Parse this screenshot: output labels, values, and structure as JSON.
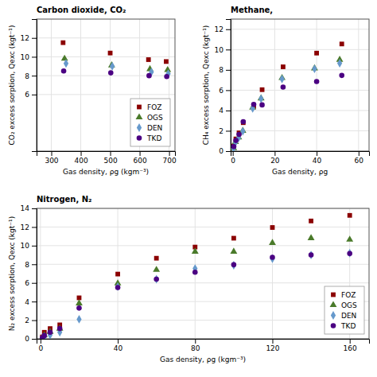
{
  "chart_data": [
    {
      "type": "scatter",
      "title": "Carbon dioxide, CO₂",
      "x_label": "Gas density, ρg (kgm⁻³)",
      "y_label": "CO₂ excess sorption, Qexc (kgt⁻¹)",
      "xlim": [
        250,
        720
      ],
      "ylim": [
        0,
        14
      ],
      "xticks": [
        300,
        400,
        500,
        600,
        700
      ],
      "yticks": [
        6,
        8,
        10,
        12
      ],
      "grid": true,
      "legend": "lower right",
      "series": [
        {
          "name": "FOZ",
          "color": "#8B0000",
          "marker": "square",
          "x": [
            340,
            500,
            630,
            690
          ],
          "values": [
            11.5,
            10.4,
            9.7,
            9.5
          ]
        },
        {
          "name": "OGS",
          "color": "#4A7A2A",
          "marker": "triangle",
          "x": [
            345,
            505,
            635,
            695
          ],
          "values": [
            9.8,
            9.1,
            8.7,
            8.6
          ]
        },
        {
          "name": "DEN",
          "color": "#6699CC",
          "marker": "diamond",
          "x": [
            350,
            507,
            640,
            697
          ],
          "values": [
            9.3,
            9.0,
            8.4,
            8.2
          ]
        },
        {
          "name": "TKD",
          "color": "#4B0082",
          "marker": "circle",
          "x": [
            342,
            502,
            632,
            692
          ],
          "values": [
            8.5,
            8.3,
            8.0,
            7.9
          ]
        }
      ]
    },
    {
      "type": "scatter",
      "title": "Methane,",
      "x_label": "Gas density, ρg",
      "y_label": "CH₄ excess sorption, Qexc (kgt⁻¹)",
      "xlim": [
        -1,
        65
      ],
      "ylim": [
        0,
        13
      ],
      "xticks": [
        0,
        20,
        40,
        60
      ],
      "yticks": [
        0,
        2,
        4,
        6,
        8,
        10,
        12
      ],
      "grid": true,
      "series": [
        {
          "name": "FOZ",
          "color": "#8B0000",
          "marker": "square",
          "x": [
            0.5,
            1.5,
            3,
            5,
            10,
            14,
            24,
            40,
            52
          ],
          "values": [
            0.5,
            1.2,
            1.8,
            2.8,
            4.4,
            6.05,
            8.3,
            9.65,
            10.55
          ]
        },
        {
          "name": "OGS",
          "color": "#4A7A2A",
          "marker": "triangle",
          "x": [
            0.4,
            1.3,
            2.8,
            4.8,
            9.5,
            13.5,
            23.5,
            39,
            51
          ],
          "values": [
            0.3,
            0.9,
            1.35,
            2.0,
            4.3,
            5.2,
            7.2,
            8.15,
            9.0
          ]
        },
        {
          "name": "DEN",
          "color": "#6699CC",
          "marker": "diamond",
          "x": [
            0.4,
            1.3,
            2.8,
            4.8,
            9.5,
            13.5,
            23.5,
            39,
            51
          ],
          "values": [
            0.28,
            0.85,
            1.3,
            1.95,
            4.2,
            5.15,
            7.1,
            8.1,
            8.65
          ]
        },
        {
          "name": "TKD",
          "color": "#4B0082",
          "marker": "circle",
          "x": [
            0.5,
            1.5,
            3,
            5,
            10,
            14,
            24,
            40,
            52
          ],
          "values": [
            0.45,
            1.05,
            1.65,
            2.9,
            4.6,
            4.55,
            6.3,
            6.85,
            7.45
          ]
        }
      ]
    },
    {
      "type": "scatter",
      "title": "Nitrogen, N₂",
      "x_label": "Gas density, ρg (kgm⁻³)",
      "y_label": "N₂ excess sorption, Qexc (kgt⁻¹)",
      "xlim": [
        -2,
        170
      ],
      "ylim": [
        0,
        14
      ],
      "xticks": [
        0,
        40,
        80,
        120,
        160
      ],
      "yticks": [
        0,
        2,
        4,
        6,
        8,
        10,
        12,
        14
      ],
      "grid": true,
      "legend": "lower right",
      "series": [
        {
          "name": "FOZ",
          "color": "#8B0000",
          "marker": "square",
          "x": [
            1,
            2,
            5,
            10,
            20,
            40,
            60,
            80,
            100,
            120,
            140,
            160
          ],
          "values": [
            0.2,
            0.7,
            1.1,
            1.5,
            4.4,
            6.95,
            8.65,
            9.85,
            10.8,
            11.95,
            12.65,
            13.25
          ]
        },
        {
          "name": "OGS",
          "color": "#4A7A2A",
          "marker": "triangle",
          "x": [
            1,
            2,
            5,
            10,
            20,
            40,
            60,
            80,
            100,
            120,
            140,
            160
          ],
          "values": [
            0.1,
            0.4,
            0.75,
            1.1,
            3.8,
            5.95,
            7.4,
            9.35,
            9.35,
            10.3,
            10.8,
            10.65
          ]
        },
        {
          "name": "DEN",
          "color": "#6699CC",
          "marker": "diamond",
          "x": [
            1,
            2,
            5,
            10,
            20,
            40,
            60,
            80,
            100,
            120,
            140,
            160
          ],
          "values": [
            0.05,
            0.2,
            0.4,
            0.7,
            2.1,
            5.6,
            6.4,
            7.55,
            7.9,
            8.6,
            9.0,
            9.2
          ]
        },
        {
          "name": "TKD",
          "color": "#4B0082",
          "marker": "circle",
          "x": [
            1,
            2,
            5,
            10,
            20,
            40,
            60,
            80,
            100,
            120,
            140,
            160
          ],
          "values": [
            0.1,
            0.35,
            0.7,
            1.1,
            3.3,
            5.5,
            6.4,
            7.15,
            7.95,
            8.75,
            9.0,
            9.15
          ]
        }
      ]
    }
  ]
}
